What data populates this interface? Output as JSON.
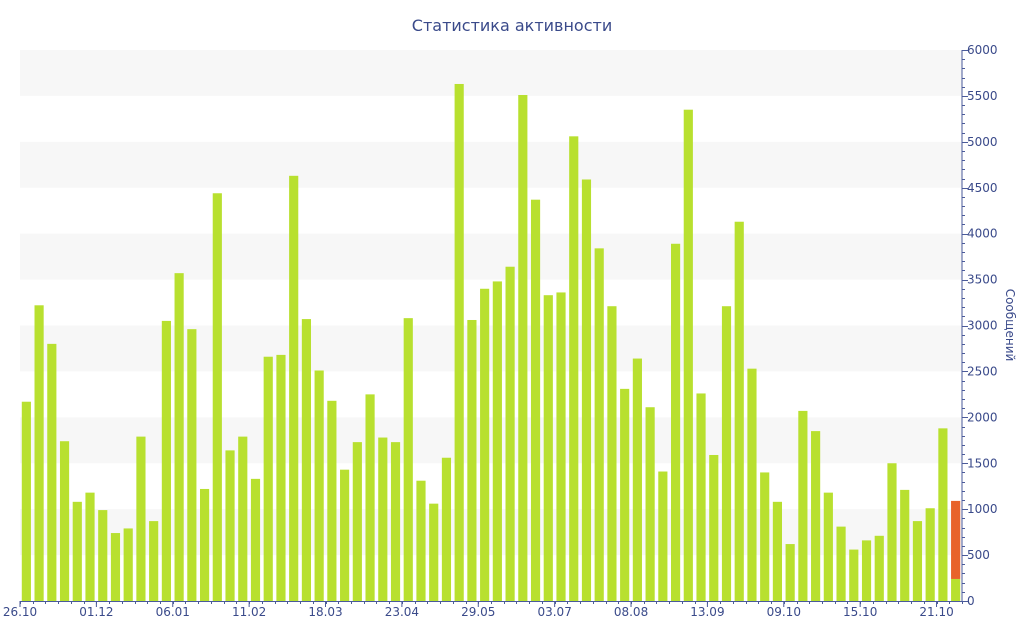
{
  "chart_data": {
    "type": "bar",
    "title": "Статистика активности",
    "xlabel": "",
    "ylabel": "Сообщений",
    "ylim": [
      0,
      6000
    ],
    "y_ticks": [
      0,
      500,
      1000,
      1500,
      2000,
      2500,
      3000,
      3500,
      4000,
      4500,
      5000,
      5500,
      6000
    ],
    "y_axis_side": "right",
    "grid": "alternating horizontal bands",
    "x_tick_labels": [
      {
        "index": 0,
        "label": "26.10"
      },
      {
        "index": 6,
        "label": "01.12"
      },
      {
        "index": 12,
        "label": "06.01"
      },
      {
        "index": 18,
        "label": "11.02"
      },
      {
        "index": 24,
        "label": "18.03"
      },
      {
        "index": 30,
        "label": "23.04"
      },
      {
        "index": 36,
        "label": "29.05"
      },
      {
        "index": 42,
        "label": "03.07"
      },
      {
        "index": 48,
        "label": "08.08"
      },
      {
        "index": 54,
        "label": "13.09"
      },
      {
        "index": 60,
        "label": "09.10"
      },
      {
        "index": 66,
        "label": "15.10"
      },
      {
        "index": 72,
        "label": "21.10"
      }
    ],
    "values": [
      2170,
      3220,
      2800,
      1740,
      1080,
      1180,
      990,
      740,
      790,
      1790,
      870,
      3050,
      3570,
      2960,
      1220,
      4440,
      1640,
      1790,
      1330,
      2660,
      2680,
      4630,
      3070,
      2510,
      2180,
      1430,
      1730,
      2250,
      1780,
      1730,
      3080,
      1310,
      1060,
      1560,
      5630,
      3060,
      3400,
      3480,
      3640,
      5510,
      4370,
      3330,
      3360,
      5060,
      4590,
      3840,
      3210,
      2310,
      2640,
      2110,
      1410,
      3890,
      5350,
      2260,
      1590,
      3210,
      4130,
      2530,
      1400,
      1080,
      620,
      2070,
      1850,
      1180,
      810,
      560,
      660,
      710,
      1500,
      1210,
      870,
      1010,
      1880,
      1090
    ],
    "highlight": {
      "index": 73,
      "segments": [
        {
          "value": 240,
          "color": "#b8e02f"
        },
        {
          "value": 850,
          "color": "#e8632a"
        }
      ]
    },
    "colors": {
      "bar": "#b8e02f",
      "highlight": "#e8632a",
      "text": "#3a4a8a",
      "band": "#f7f7f7",
      "axis": "#4a5a9a"
    }
  }
}
